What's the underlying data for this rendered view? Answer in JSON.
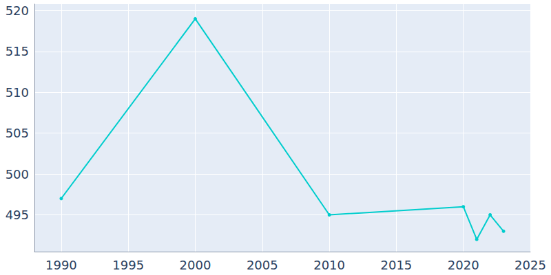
{
  "chart_data": {
    "type": "line",
    "x": [
      1990,
      2000,
      2010,
      2020,
      2021,
      2022,
      2023
    ],
    "values": [
      497,
      519,
      495,
      496,
      492,
      495,
      493
    ],
    "color": "#00cdcd",
    "marker": "circle",
    "line_style": "solid",
    "xlim": [
      1988,
      2025
    ],
    "xticks": [
      1990,
      1995,
      2000,
      2005,
      2010,
      2015,
      2020,
      2025
    ],
    "ylim": [
      490.5,
      520.8
    ],
    "yticks": [
      495,
      500,
      505,
      510,
      515,
      520
    ],
    "grid": true
  }
}
